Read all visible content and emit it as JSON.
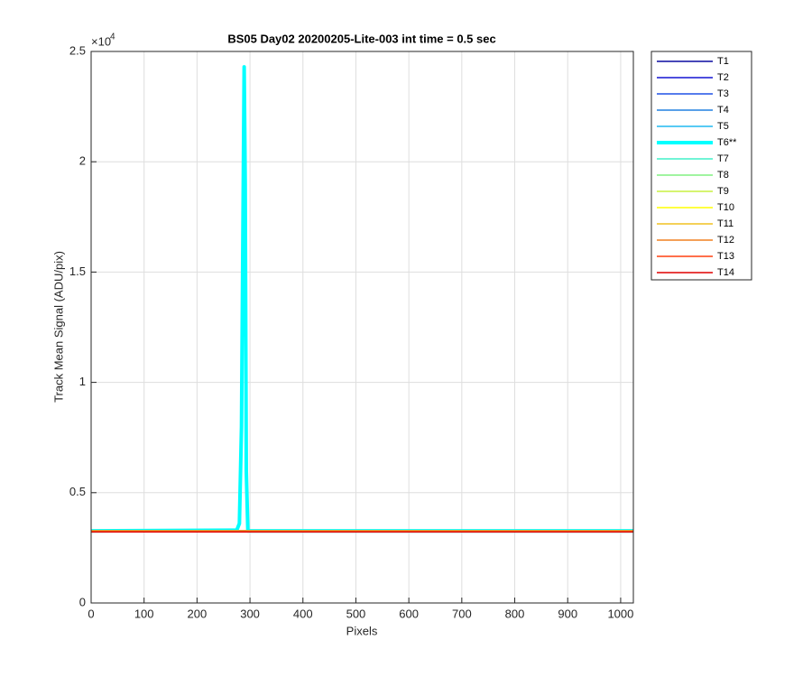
{
  "chart_data": {
    "type": "line",
    "title": "BS05 Day02 20200205-Lite-003 int time = 0.5 sec",
    "x_label": "Pixels",
    "y_label": "Track Mean Signal (ADU/pix)",
    "y_exponent_label": {
      "base": "×10",
      "exponent": "4"
    },
    "xlim": [
      0,
      1024
    ],
    "ylim": [
      0,
      2.5
    ],
    "xticks": [
      0,
      100,
      200,
      300,
      400,
      500,
      600,
      700,
      800,
      900,
      1000
    ],
    "yticks": [
      0,
      0.5,
      1,
      1.5,
      2,
      2.5
    ],
    "grid": true,
    "legend_position": "outside-right",
    "x": [
      1,
      275,
      280,
      284,
      287,
      289,
      291,
      293,
      296,
      1024
    ],
    "series": [
      {
        "name": "T1",
        "color": "#0a0aa0",
        "values": [
          0.327,
          0.327,
          0.327,
          0.327,
          0.327,
          0.327,
          0.327,
          0.327,
          0.327,
          0.327
        ]
      },
      {
        "name": "T2",
        "color": "#1414d2",
        "values": [
          0.327,
          0.327,
          0.327,
          0.327,
          0.327,
          0.327,
          0.327,
          0.327,
          0.327,
          0.327
        ]
      },
      {
        "name": "T3",
        "color": "#1e50e6",
        "values": [
          0.327,
          0.327,
          0.327,
          0.327,
          0.327,
          0.327,
          0.327,
          0.327,
          0.327,
          0.327
        ]
      },
      {
        "name": "T4",
        "color": "#2080e0",
        "values": [
          0.327,
          0.327,
          0.327,
          0.327,
          0.327,
          0.327,
          0.327,
          0.327,
          0.327,
          0.327
        ]
      },
      {
        "name": "T5",
        "color": "#20b8f0",
        "values": [
          0.327,
          0.327,
          0.327,
          0.327,
          0.327,
          0.327,
          0.327,
          0.327,
          0.327,
          0.327
        ]
      },
      {
        "name": "T6**",
        "color": "#00ffff",
        "width": 4,
        "values": [
          0.327,
          0.33,
          0.36,
          0.8,
          1.8,
          2.43,
          1.9,
          0.6,
          0.327,
          0.327
        ]
      },
      {
        "name": "T7",
        "color": "#40f0c8",
        "values": [
          0.327,
          0.327,
          0.327,
          0.327,
          0.327,
          0.327,
          0.327,
          0.327,
          0.327,
          0.327
        ]
      },
      {
        "name": "T8",
        "color": "#80f080",
        "values": [
          0.327,
          0.327,
          0.327,
          0.327,
          0.327,
          0.327,
          0.327,
          0.327,
          0.327,
          0.327
        ]
      },
      {
        "name": "T9",
        "color": "#c8f040",
        "values": [
          0.327,
          0.327,
          0.327,
          0.327,
          0.327,
          0.327,
          0.327,
          0.327,
          0.327,
          0.327
        ]
      },
      {
        "name": "T10",
        "color": "#ffff00",
        "values": [
          0.327,
          0.327,
          0.327,
          0.327,
          0.327,
          0.327,
          0.327,
          0.327,
          0.327,
          0.327
        ]
      },
      {
        "name": "T11",
        "color": "#f0c020",
        "values": [
          0.327,
          0.327,
          0.327,
          0.327,
          0.327,
          0.327,
          0.327,
          0.327,
          0.327,
          0.327
        ]
      },
      {
        "name": "T12",
        "color": "#f08020",
        "values": [
          0.327,
          0.327,
          0.327,
          0.327,
          0.327,
          0.327,
          0.327,
          0.327,
          0.327,
          0.327
        ]
      },
      {
        "name": "T13",
        "color": "#ff4010",
        "values": [
          0.322,
          0.322,
          0.322,
          0.322,
          0.322,
          0.322,
          0.322,
          0.322,
          0.322,
          0.322
        ]
      },
      {
        "name": "T14",
        "color": "#e00000",
        "values": [
          0.322,
          0.322,
          0.322,
          0.322,
          0.322,
          0.322,
          0.322,
          0.322,
          0.322,
          0.322
        ]
      }
    ]
  }
}
